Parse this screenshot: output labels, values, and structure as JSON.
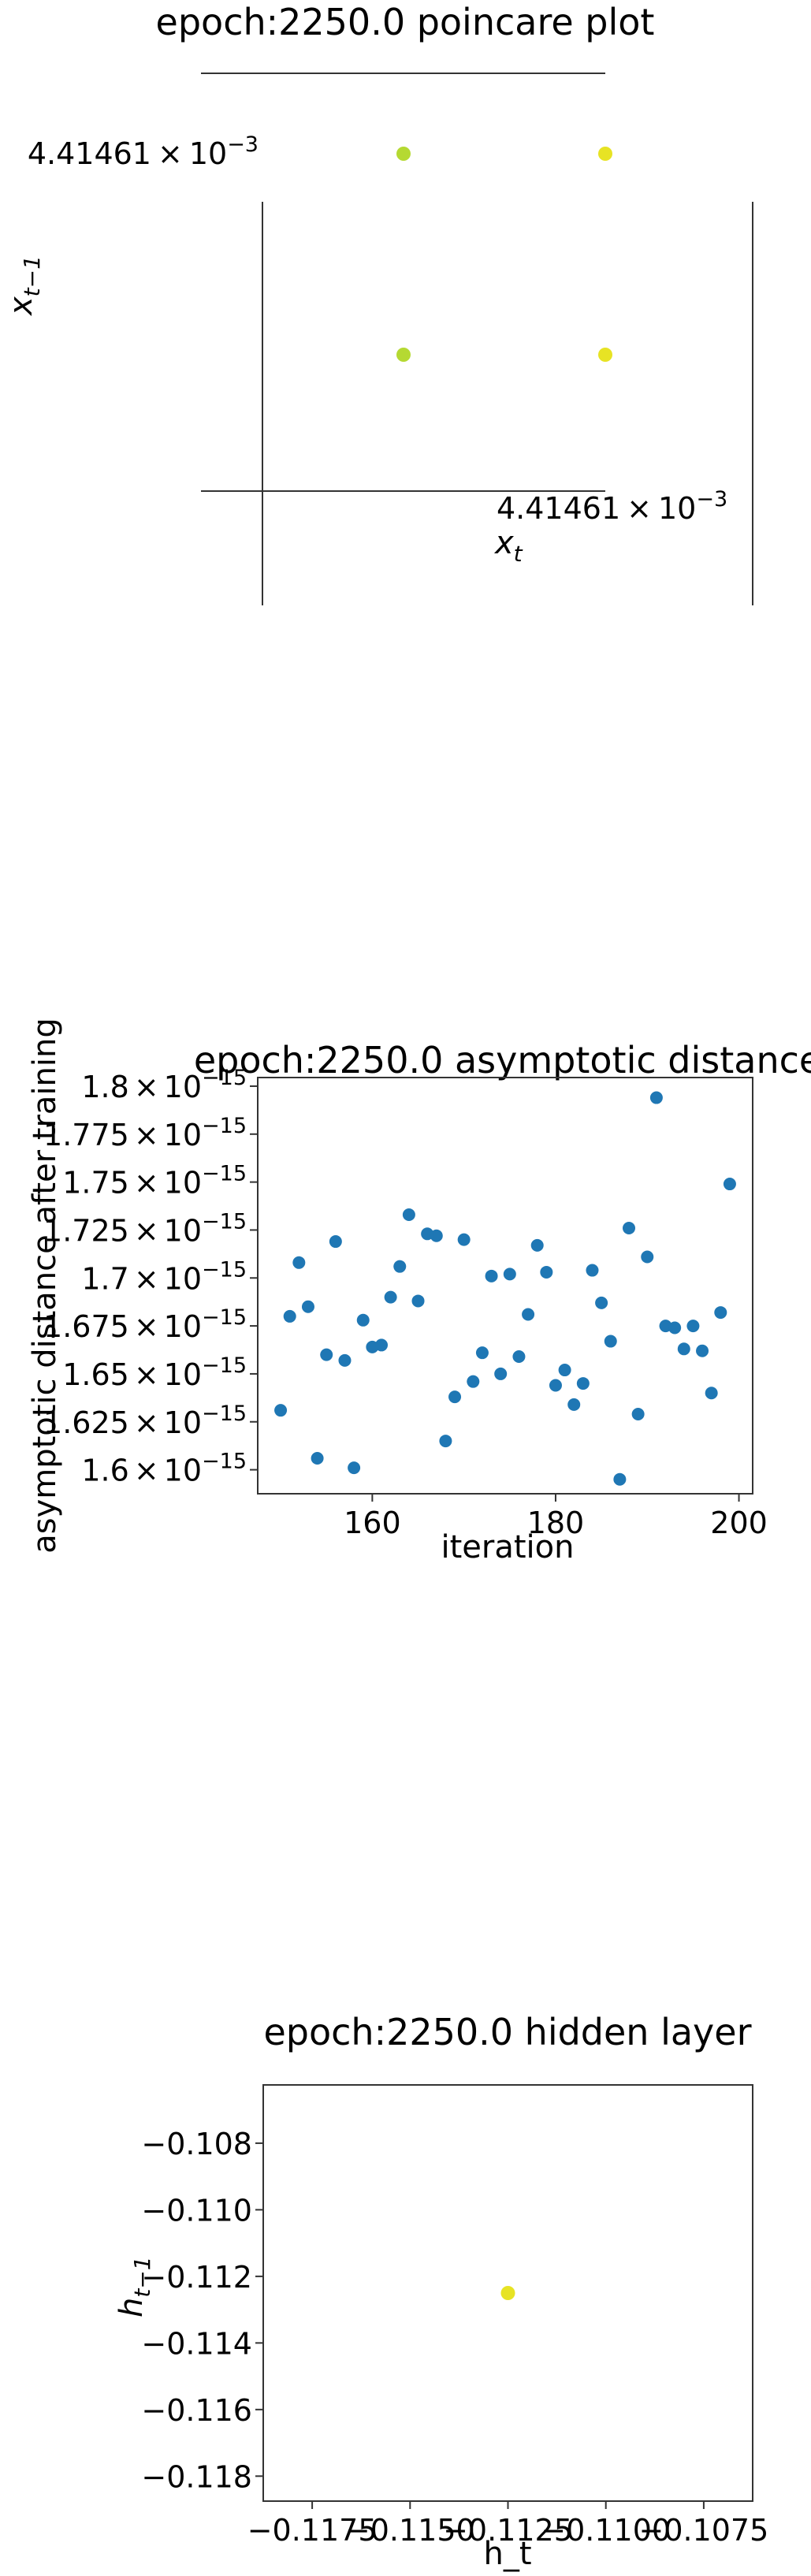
{
  "chart_data": [
    {
      "type": "scatter",
      "title": "epoch:2250.0 poincare plot",
      "xlabel_base": "x",
      "xlabel_sub": "t",
      "ylabel_base": "x",
      "ylabel_sub": "t−1",
      "x_tick_mantissa": "4.41461",
      "x_tick_times": "×",
      "x_tick_base": "10",
      "x_tick_exp": "−3",
      "y_tick_mantissa": "4.41461",
      "y_tick_times": "×",
      "y_tick_base": "10",
      "y_tick_exp": "−3",
      "points": [
        {
          "x": 0.00441461,
          "y": 0.00441461,
          "color": "#b5d932"
        },
        {
          "x": 0.00441461,
          "y": 0.00441461,
          "color": "#e7e324"
        },
        {
          "x": 0.00441461,
          "y": 0.00441461,
          "color": "#b5d932"
        },
        {
          "x": 0.00441461,
          "y": 0.00441461,
          "color": "#e7e324"
        }
      ]
    },
    {
      "type": "scatter",
      "title": "epoch:2250.0 asymptotic distance",
      "xlabel": "iteration",
      "ylabel": "asymptotic distance after training",
      "xlim": [
        147.5,
        201.5
      ],
      "ylim": [
        1.5875e-15,
        1.8045e-15
      ],
      "x_ticks": [
        160,
        180,
        200
      ],
      "x_tick_labels": [
        "160",
        "180",
        "200"
      ],
      "y_ticks": [
        1.6e-15,
        1.625e-15,
        1.65e-15,
        1.675e-15,
        1.7e-15,
        1.725e-15,
        1.75e-15,
        1.775e-15,
        1.8e-15
      ],
      "y_tick_mantissas": [
        "1.6",
        "1.625",
        "1.65",
        "1.675",
        "1.7",
        "1.725",
        "1.75",
        "1.775",
        "1.8"
      ],
      "y_tick_times": "×",
      "y_tick_base": "10",
      "y_tick_exp": "−15",
      "point_color": "#1f77b4",
      "x": [
        150,
        151,
        152,
        153,
        154,
        155,
        156,
        157,
        158,
        159,
        160,
        161,
        162,
        163,
        164,
        165,
        166,
        167,
        168,
        169,
        170,
        171,
        172,
        173,
        174,
        175,
        176,
        177,
        178,
        179,
        180,
        181,
        182,
        183,
        184,
        185,
        186,
        187,
        188,
        189,
        190,
        191,
        192,
        193,
        194,
        195,
        196,
        197,
        198,
        199
      ],
      "y": [
        1.631e-15,
        1.68e-15,
        1.708e-15,
        1.685e-15,
        1.606e-15,
        1.66e-15,
        1.719e-15,
        1.657e-15,
        1.601e-15,
        1.678e-15,
        1.664e-15,
        1.665e-15,
        1.69e-15,
        1.706e-15,
        1.733e-15,
        1.688e-15,
        1.723e-15,
        1.722e-15,
        1.615e-15,
        1.638e-15,
        1.72e-15,
        1.646e-15,
        1.661e-15,
        1.701e-15,
        1.65e-15,
        1.702e-15,
        1.659e-15,
        1.681e-15,
        1.717e-15,
        1.703e-15,
        1.644e-15,
        1.652e-15,
        1.634e-15,
        1.645e-15,
        1.704e-15,
        1.687e-15,
        1.667e-15,
        1.595e-15,
        1.726e-15,
        1.629e-15,
        1.711e-15,
        1.794e-15,
        1.675e-15,
        1.674e-15,
        1.663e-15,
        1.675e-15,
        1.662e-15,
        1.64e-15,
        1.682e-15,
        1.749e-15
      ]
    },
    {
      "type": "scatter",
      "title": "epoch:2250.0 hidden layer",
      "xlabel": "h_t",
      "ylabel_base": "h",
      "ylabel_sub": "t−1",
      "xlim": [
        -0.11875,
        -0.10625
      ],
      "ylim": [
        -0.11875,
        -0.10625
      ],
      "x_ticks": [
        -0.1175,
        -0.115,
        -0.1125,
        -0.11,
        -0.1075
      ],
      "x_tick_labels": [
        "−0.1175",
        "−0.1150",
        "−0.1125",
        "−0.1100",
        "−0.1075"
      ],
      "y_ticks": [
        -0.108,
        -0.11,
        -0.112,
        -0.114,
        -0.116,
        -0.118
      ],
      "y_tick_labels": [
        "−0.108",
        "−0.110",
        "−0.112",
        "−0.114",
        "−0.116",
        "−0.118"
      ],
      "points": [
        {
          "x": -0.1125,
          "y": -0.1125,
          "color": "#e7e324"
        }
      ]
    }
  ]
}
